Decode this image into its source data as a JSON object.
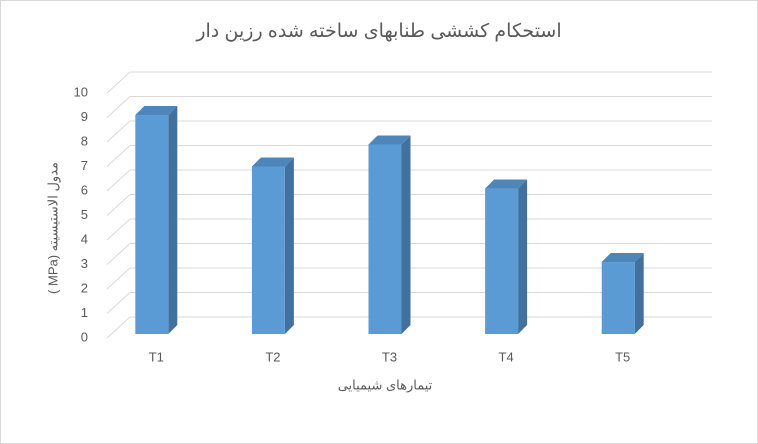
{
  "chart_data": {
    "type": "bar3d",
    "title": "استحکام کششی طنابهای ساخته شده رزین دار",
    "x_label": "تیمارهای شیمیایی",
    "y_label": "مدول الاستیسیته (MPa )",
    "categories": [
      "T1",
      "T2",
      "T3",
      "T4",
      "T5"
    ],
    "values": [
      9.1,
      7.0,
      7.9,
      6.1,
      3.1
    ],
    "color": "#5b9bd5",
    "ylim": [
      0,
      10
    ],
    "yticks": [
      0,
      1,
      2,
      3,
      4,
      5,
      6,
      7,
      8,
      9,
      10
    ],
    "grid": true
  }
}
